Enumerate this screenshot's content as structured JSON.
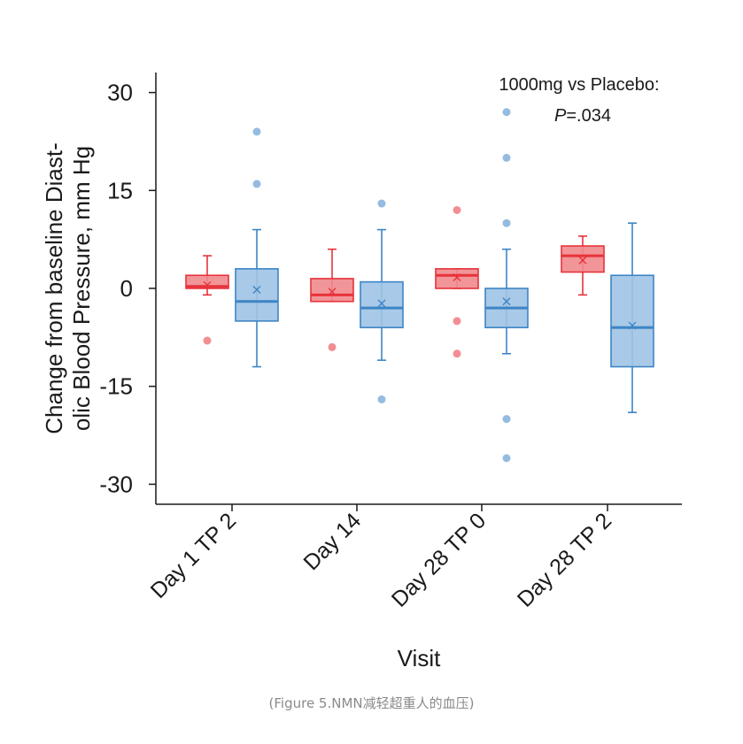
{
  "chart_data": {
    "type": "box",
    "xlabel": "Visit",
    "ylabel_line1": "Change from baseline Diast-",
    "ylabel_line2": "olic Blood Pressure, mm Hg",
    "ylim": [
      -33,
      33
    ],
    "yticks": [
      30,
      15,
      0,
      -15,
      -30
    ],
    "ytick_labels": [
      "30",
      "15",
      "0",
      "-15",
      "-30"
    ],
    "categories": [
      "Day 1 TP 2",
      "Day 14",
      "Day 28 TP 0",
      "Day 28 TP 2"
    ],
    "annotation": {
      "line1": "1000mg vs Placebo:",
      "p_symbol": "P",
      "p_value": "=.034"
    },
    "series": [
      {
        "color": "#e8323a",
        "fill": "#ef8a8e",
        "boxes": [
          {
            "q1": 0,
            "median": 0.3,
            "q3": 2,
            "mean": 0.5,
            "whisker_low": -1,
            "whisker_high": 5,
            "outliers": [
              -8
            ]
          },
          {
            "q1": -2,
            "median": -1,
            "q3": 1.5,
            "mean": -0.5,
            "whisker_low": -2,
            "whisker_high": 6,
            "outliers": [
              -9
            ]
          },
          {
            "q1": 0,
            "median": 2,
            "q3": 3,
            "mean": 1.7,
            "whisker_low": 0,
            "whisker_high": 3,
            "outliers": [
              12,
              -5,
              -10
            ]
          },
          {
            "q1": 2.5,
            "median": 5,
            "q3": 6.5,
            "mean": 4.3,
            "whisker_low": -1,
            "whisker_high": 8,
            "outliers": []
          }
        ]
      },
      {
        "color": "#3d85c6",
        "fill": "#9ec3e4",
        "boxes": [
          {
            "q1": -5,
            "median": -2,
            "q3": 3,
            "mean": -0.2,
            "whisker_low": -12,
            "whisker_high": 9,
            "outliers": [
              24,
              16
            ]
          },
          {
            "q1": -6,
            "median": -3,
            "q3": 1,
            "mean": -2.3,
            "whisker_low": -11,
            "whisker_high": 9,
            "outliers": [
              13,
              -17
            ]
          },
          {
            "q1": -6,
            "median": -3,
            "q3": 0,
            "mean": -2,
            "whisker_low": -10,
            "whisker_high": 6,
            "outliers": [
              27,
              20,
              10,
              -20,
              -26
            ]
          },
          {
            "q1": -12,
            "median": -6,
            "q3": 2,
            "mean": -5.7,
            "whisker_low": -19,
            "whisker_high": 10,
            "outliers": []
          }
        ]
      }
    ]
  },
  "caption": "(Figure 5.NMN减轻超重人的血压)"
}
